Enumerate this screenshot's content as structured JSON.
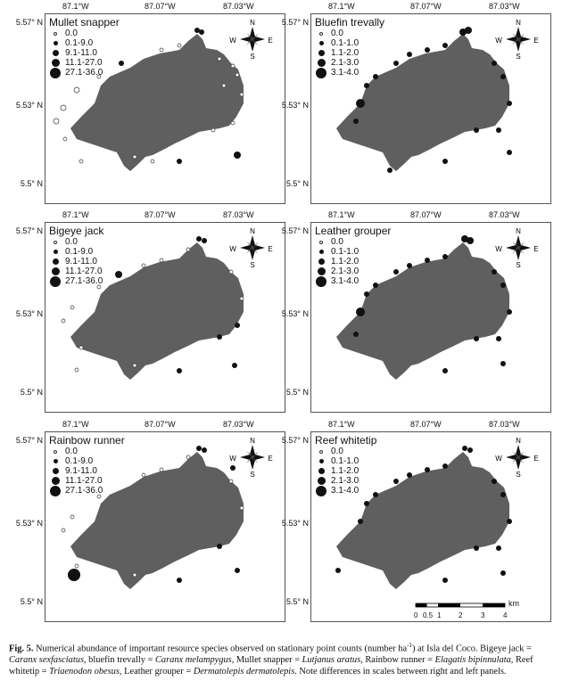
{
  "axes": {
    "lon_ticks": [
      "87.1°W",
      "87.07°W",
      "87.03°W"
    ],
    "lat_ticks": [
      "5.57° N",
      "5.53° N",
      "5.5° N"
    ]
  },
  "compass": {
    "n": "N",
    "s": "S",
    "e": "E",
    "w": "W"
  },
  "scale_bar": {
    "ticks": [
      "0",
      "0.5",
      "1",
      "2",
      "3",
      "4"
    ],
    "unit": "km"
  },
  "legend_a": [
    "0.0",
    "0.1-9.0",
    "9.1-11.0",
    "11.1-27.0",
    "27.1-36.0"
  ],
  "legend_b": [
    "0.0",
    "0.1-1.0",
    "1.1-2.0",
    "2.1-3.0",
    "3.1-4.0"
  ],
  "panels": [
    {
      "id": "mullet-snapper",
      "title": "Mullet snapper",
      "legend": "a"
    },
    {
      "id": "bluefin-trevally",
      "title": "Bluefin trevally",
      "legend": "b"
    },
    {
      "id": "bigeye-jack",
      "title": "Bigeye jack",
      "legend": "a"
    },
    {
      "id": "leather-grouper",
      "title": "Leather grouper",
      "legend": "b"
    },
    {
      "id": "rainbow-runner",
      "title": "Rainbow runner",
      "legend": "a"
    },
    {
      "id": "reef-whitetip",
      "title": "Reef whitetip",
      "legend": "b"
    }
  ],
  "caption": {
    "figure_label": "Fig. 5.",
    "text_1": " Numerical abundance of important resource species observed on stationary point counts (number ha",
    "superscript": "-1",
    "text_2": ") at Isla del Coco. Bigeye jack = ",
    "sp1": "Caranx sexfasciatus",
    "t3": ", bluefin trevally = ",
    "sp2": "Caranx melampygus",
    "t4": ", Mullet snapper = ",
    "sp3": "Lutjanus aratus",
    "t5": ", Rainbow runner = ",
    "sp4": "Elagatis bipinnulata",
    "t6": ", Reef whitetip = ",
    "sp5": "Triaenodon obesus",
    "t7": ", Leather grouper = ",
    "sp6": "Dermatolepis dermatolepis",
    "t8": ". Note differences in scales between right and left panels."
  },
  "colors": {
    "island": "#5f5f60",
    "point": "#111111",
    "frame": "#555555"
  }
}
